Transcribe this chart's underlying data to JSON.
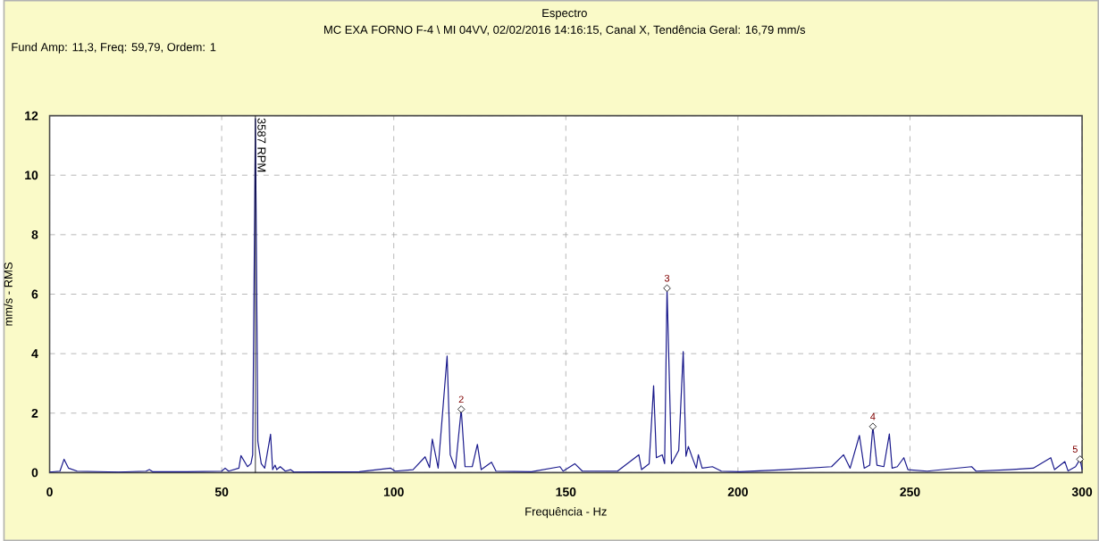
{
  "chart_data": {
    "type": "line",
    "title": "Espectro",
    "subtitle": "MC EXA FORNO F-4 \\ MI 04VV, 02/02/2016 14:16:15, Canal X, Tendência Geral: 16,79 mm/s",
    "xlabel": "Frequência - Hz",
    "ylabel": "mm/s - RMS",
    "xlim": [
      0,
      300
    ],
    "ylim": [
      0,
      12
    ],
    "xticks": [
      0,
      50,
      100,
      150,
      200,
      250,
      300
    ],
    "yticks": [
      0,
      2,
      4,
      6,
      8,
      10,
      12
    ],
    "grid": true,
    "marker": "none",
    "line_style": "solid",
    "ref_lines": [
      {
        "axis": "x",
        "value": 59.79,
        "label": "3587 RPM",
        "color": "#000000"
      }
    ],
    "annotations": [
      "Fund Amp: 11,3, Freq: 59,79, Ordem: 1",
      {
        "text": "2",
        "x": 119.6,
        "y": 2.13
      },
      {
        "text": "3",
        "x": 179.4,
        "y": 6.2
      },
      {
        "text": "4",
        "x": 239.2,
        "y": 1.55
      },
      {
        "text": "5",
        "x": 299.4,
        "y": 0.45
      }
    ],
    "series": [
      {
        "color": "#1a1a8c",
        "x": [
          0,
          3,
          4.2,
          5.5,
          8,
          20,
          28,
          29,
          30,
          40,
          50,
          51,
          52,
          55,
          55.6,
          57.5,
          58.5,
          59,
          59.79,
          60.5,
          61.5,
          62.5,
          64.2,
          64.8,
          65.5,
          66,
          67,
          68.5,
          70,
          71,
          90,
          99.1,
          100.4,
          105.6,
          109.1,
          110.4,
          111.2,
          112.9,
          115.5,
          116.4,
          117.9,
          119.6,
          120.7,
          122.8,
          124.3,
          125.4,
          128.4,
          129.7,
          140,
          148.3,
          149.2,
          152.6,
          154.8,
          165,
          171.2,
          172,
          174.2,
          175.5,
          176.3,
          178,
          178.7,
          179.4,
          180.7,
          182.8,
          184.1,
          184.9,
          185.6,
          186.6,
          187.9,
          188.5,
          189.6,
          192.6,
          195.2,
          200.5,
          213.4,
          227.2,
          230.7,
          232.6,
          235.3,
          236.7,
          238.3,
          239.2,
          240.4,
          242.4,
          244.0,
          244.8,
          246.3,
          248.2,
          249.4,
          255,
          267.9,
          269.2,
          278.8,
          285.8,
          290.9,
          292,
          295,
          295.9,
          298.1,
          299.4,
          300
        ],
        "values": [
          0.02,
          0.05,
          0.45,
          0.15,
          0.05,
          0.02,
          0.05,
          0.1,
          0.03,
          0.03,
          0.05,
          0.15,
          0.05,
          0.15,
          0.57,
          0.2,
          0.3,
          0.6,
          11.9,
          1.05,
          0.3,
          0.15,
          1.29,
          0.1,
          0.25,
          0.1,
          0.2,
          0.05,
          0.1,
          0.02,
          0.03,
          0.15,
          0.05,
          0.1,
          0.53,
          0.17,
          1.13,
          0.15,
          3.92,
          0.6,
          0.14,
          2.13,
          0.2,
          0.2,
          0.95,
          0.1,
          0.35,
          0.05,
          0.03,
          0.2,
          0.05,
          0.3,
          0.05,
          0.05,
          0.6,
          0.1,
          0.3,
          2.92,
          0.5,
          0.6,
          0.3,
          6.2,
          0.3,
          0.75,
          4.07,
          0.55,
          0.88,
          0.55,
          0.15,
          0.6,
          0.15,
          0.2,
          0.05,
          0.03,
          0.1,
          0.2,
          0.6,
          0.15,
          1.25,
          0.15,
          0.25,
          1.55,
          0.25,
          0.2,
          1.3,
          0.15,
          0.2,
          0.5,
          0.1,
          0.05,
          0.2,
          0.05,
          0.1,
          0.15,
          0.5,
          0.1,
          0.37,
          0.06,
          0.2,
          0.45,
          0.1
        ]
      }
    ]
  }
}
